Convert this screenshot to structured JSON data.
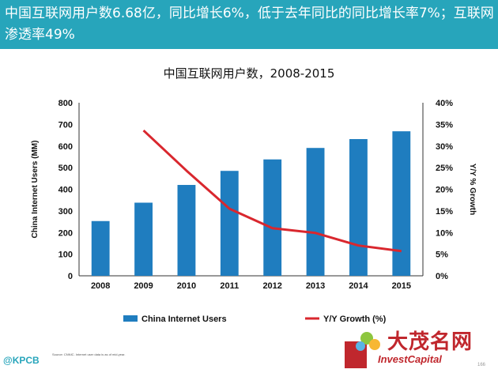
{
  "header": {
    "title": "中国互联网用户数6.68亿，同比增长6%，低于去年同比的同比增长率7%；互联网渗透率49%"
  },
  "colors": {
    "header_bg": "#27a5bb",
    "bar": "#1f7dbf",
    "line": "#d9272e"
  },
  "chart_data": {
    "type": "bar",
    "title": "中国互联网用户数，2008-2015",
    "categories": [
      "2008",
      "2009",
      "2010",
      "2011",
      "2012",
      "2013",
      "2014",
      "2015"
    ],
    "series": [
      {
        "name": "China Internet Users",
        "type": "bar",
        "axis": "left",
        "values": [
          253,
          338,
          420,
          485,
          538,
          591,
          632,
          668
        ]
      },
      {
        "name": "Y/Y Growth (%)",
        "type": "line",
        "axis": "right",
        "values": [
          null,
          33.6,
          24.3,
          15.5,
          11.0,
          9.9,
          7.0,
          5.7
        ]
      }
    ],
    "ylabel": "China Internet Users (MM)",
    "y2label": "Y/Y % Growth",
    "ylim": [
      0,
      800
    ],
    "y2lim": [
      0,
      40
    ],
    "yticks": [
      "0",
      "100",
      "200",
      "300",
      "400",
      "500",
      "600",
      "700",
      "800"
    ],
    "y2ticks": [
      "0%",
      "5%",
      "10%",
      "15%",
      "20%",
      "25%",
      "30%",
      "35%",
      "40%"
    ],
    "grid": false,
    "legend": "bottom"
  },
  "footer": {
    "logo": "@KPCB",
    "source": "Source: CNNIC. Internet user data is as of mid-year.",
    "page": "166"
  },
  "watermark": {
    "top": "大茂名网",
    "bottom": "InvestCapital"
  }
}
